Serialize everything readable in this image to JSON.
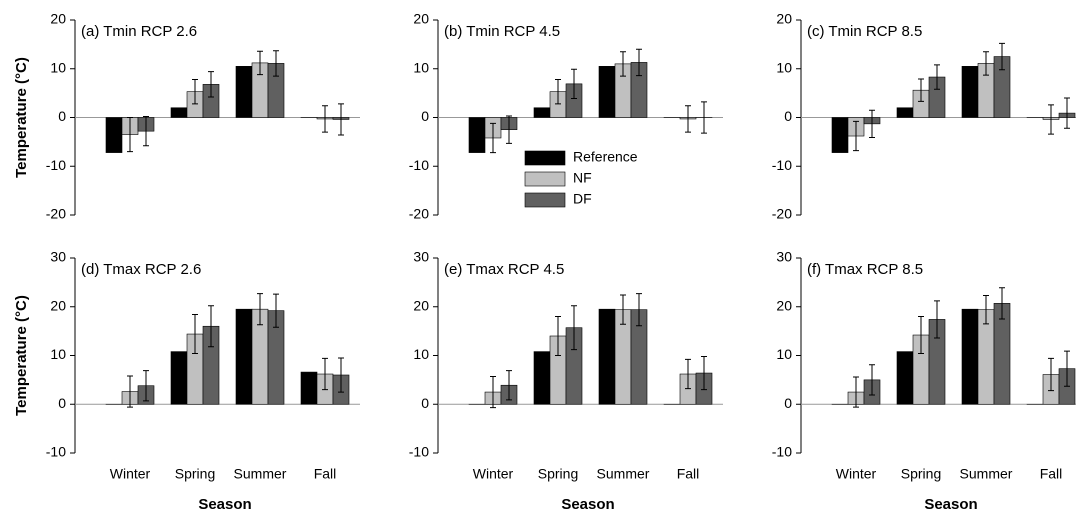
{
  "chart_data": [
    {
      "type": "bar",
      "title": "(a) Tmin RCP 2.6",
      "ylabel": "Temperature (°C)",
      "categories": [
        "Winter",
        "Spring",
        "Summer",
        "Fall"
      ],
      "series": [
        {
          "name": "Reference",
          "color": "#000000",
          "values": [
            -7.2,
            2,
            10.5,
            0
          ]
        },
        {
          "name": "NF",
          "color": "#c0c0c0",
          "values": [
            -3.5,
            5.3,
            11.2,
            -0.3
          ],
          "errors": [
            3.5,
            2.5,
            2.4,
            2.7
          ]
        },
        {
          "name": "DF",
          "color": "#606060",
          "values": [
            -2.8,
            6.8,
            11.1,
            -0.4
          ],
          "errors": [
            3,
            2.6,
            2.6,
            3.2
          ]
        }
      ],
      "ylim": [
        -20,
        20
      ],
      "yticks": [
        -20,
        -10,
        0,
        10,
        20
      ]
    },
    {
      "type": "bar",
      "title": "(b) Tmin RCP 4.5",
      "legend": "center",
      "categories": [
        "Winter",
        "Spring",
        "Summer",
        "Fall"
      ],
      "series": [
        {
          "name": "Reference",
          "color": "#000000",
          "values": [
            -7.2,
            2,
            10.5,
            0
          ]
        },
        {
          "name": "NF",
          "color": "#c0c0c0",
          "values": [
            -4.2,
            5.3,
            11,
            -0.3
          ],
          "errors": [
            3,
            2.5,
            2.5,
            2.7
          ]
        },
        {
          "name": "DF",
          "color": "#606060",
          "values": [
            -2.5,
            6.9,
            11.3,
            0
          ],
          "errors": [
            2.8,
            3,
            2.7,
            3.2
          ]
        }
      ],
      "ylim": [
        -20,
        20
      ],
      "yticks": [
        -20,
        -10,
        0,
        10,
        20
      ]
    },
    {
      "type": "bar",
      "title": "(c) Tmin RCP 8.5",
      "categories": [
        "Winter",
        "Spring",
        "Summer",
        "Fall"
      ],
      "series": [
        {
          "name": "Reference",
          "color": "#000000",
          "values": [
            -7.2,
            2,
            10.5,
            0
          ]
        },
        {
          "name": "NF",
          "color": "#c0c0c0",
          "values": [
            -3.8,
            5.6,
            11.1,
            -0.4
          ],
          "errors": [
            3,
            2.3,
            2.4,
            3
          ]
        },
        {
          "name": "DF",
          "color": "#606060",
          "values": [
            -1.3,
            8.3,
            12.5,
            0.9
          ],
          "errors": [
            2.8,
            2.5,
            2.7,
            3.1
          ]
        }
      ],
      "ylim": [
        -20,
        20
      ],
      "yticks": [
        -20,
        -10,
        0,
        10,
        20
      ]
    },
    {
      "type": "bar",
      "title": "(d) Tmax RCP 2.6",
      "ylabel": "Temperature (°C)",
      "xlabel": "Season",
      "categories": [
        "Winter",
        "Spring",
        "Summer",
        "Fall"
      ],
      "series": [
        {
          "name": "Reference",
          "color": "#000000",
          "values": [
            0,
            10.8,
            19.5,
            6.6
          ]
        },
        {
          "name": "NF",
          "color": "#c0c0c0",
          "values": [
            2.6,
            14.4,
            19.5,
            6.2
          ],
          "errors": [
            3.2,
            4,
            3.2,
            3.2
          ]
        },
        {
          "name": "DF",
          "color": "#606060",
          "values": [
            3.8,
            16,
            19.2,
            6
          ],
          "errors": [
            3.1,
            4.2,
            3.4,
            3.5
          ]
        }
      ],
      "ylim": [
        -10,
        30
      ],
      "yticks": [
        -10,
        0,
        10,
        20,
        30
      ]
    },
    {
      "type": "bar",
      "title": "(e) Tmax RCP 4.5",
      "xlabel": "Season",
      "categories": [
        "Winter",
        "Spring",
        "Summer",
        "Fall"
      ],
      "series": [
        {
          "name": "Reference",
          "color": "#000000",
          "values": [
            0,
            10.8,
            19.5,
            0
          ]
        },
        {
          "name": "NF",
          "color": "#c0c0c0",
          "values": [
            2.5,
            14,
            19.4,
            6.2
          ],
          "errors": [
            3.2,
            4,
            3,
            3
          ]
        },
        {
          "name": "DF",
          "color": "#606060",
          "values": [
            3.9,
            15.7,
            19.4,
            6.4
          ],
          "errors": [
            3,
            4.5,
            3.3,
            3.4
          ]
        }
      ],
      "ylim": [
        -10,
        30
      ],
      "yticks": [
        -10,
        0,
        10,
        20,
        30
      ]
    },
    {
      "type": "bar",
      "title": "(f) Tmax RCP 8.5",
      "xlabel": "Season",
      "categories": [
        "Winter",
        "Spring",
        "Summer",
        "Fall"
      ],
      "series": [
        {
          "name": "Reference",
          "color": "#000000",
          "values": [
            0,
            10.8,
            19.5,
            0
          ]
        },
        {
          "name": "NF",
          "color": "#c0c0c0",
          "values": [
            2.5,
            14.2,
            19.4,
            6.1
          ],
          "errors": [
            3.1,
            3.8,
            2.9,
            3.3
          ]
        },
        {
          "name": "DF",
          "color": "#606060",
          "values": [
            5,
            17.4,
            20.7,
            7.3
          ],
          "errors": [
            3.1,
            3.8,
            3.2,
            3.6
          ]
        }
      ],
      "ylim": [
        -10,
        30
      ],
      "yticks": [
        -10,
        0,
        10,
        20,
        30
      ]
    }
  ]
}
